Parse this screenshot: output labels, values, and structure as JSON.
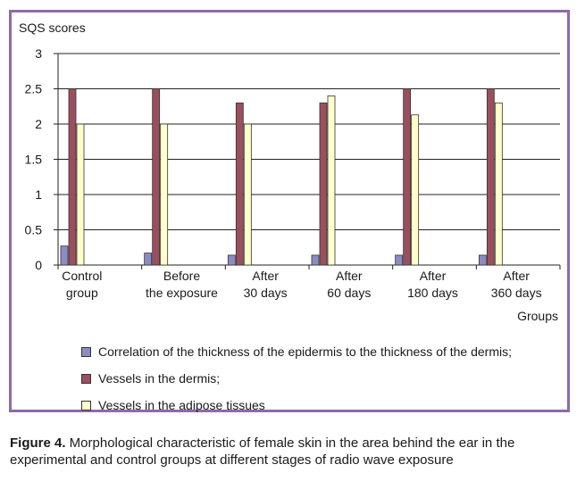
{
  "chart_data": {
    "type": "bar",
    "ylabel": "SQS scores",
    "xlabel": "Groups",
    "ylim": [
      0,
      3
    ],
    "yticks": [
      "0",
      "0.5",
      "1",
      "1.5",
      "2",
      "2.5",
      "3"
    ],
    "categories": [
      [
        "Control",
        "group"
      ],
      [
        "Before",
        "the exposure"
      ],
      [
        "After",
        "30 days"
      ],
      [
        "After",
        "60 days"
      ],
      [
        "After",
        "180 days"
      ],
      [
        "After",
        "360 days"
      ]
    ],
    "series": [
      {
        "name": "Correlation of the thickness of the epidermis to the thickness of the dermis;",
        "color": "#8c8cc4",
        "values": [
          0.27,
          0.17,
          0.14,
          0.14,
          0.14,
          0.14
        ]
      },
      {
        "name": "Vessels in the dermis;",
        "color": "#9b4f5e",
        "values": [
          2.5,
          2.5,
          2.3,
          2.3,
          2.5,
          2.5
        ]
      },
      {
        "name": "Vessels in the adipose tissues",
        "color": "#ffffcc",
        "values": [
          2.0,
          2.0,
          2.0,
          2.4,
          2.13,
          2.3
        ]
      }
    ],
    "grid": true,
    "legend_position": "bottom"
  },
  "caption": {
    "label": "Figure 4.",
    "text": " Morphological characteristic of female skin in the area behind the ear in the experimental and control groups at different stages of radio wave exposure"
  }
}
